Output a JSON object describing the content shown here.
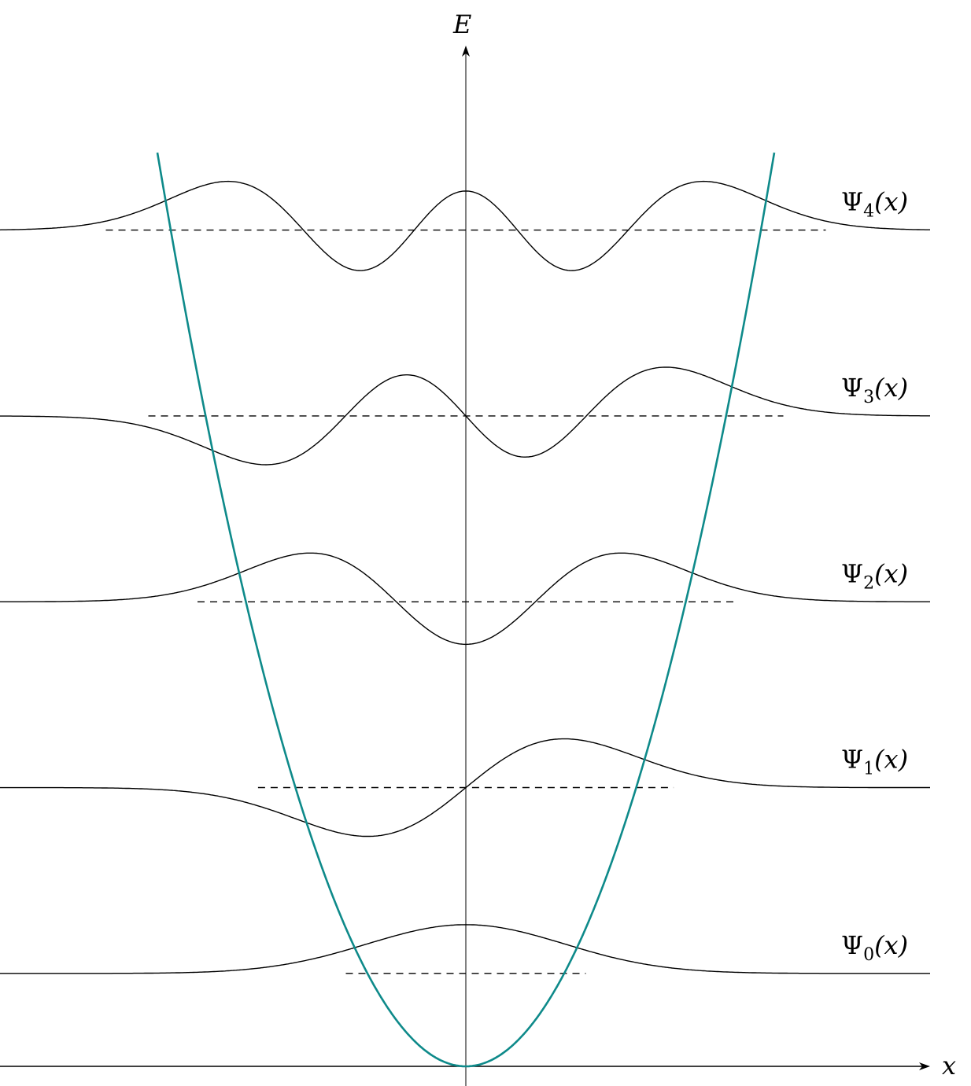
{
  "axes": {
    "x_label": "x",
    "y_label": "E"
  },
  "potential": {
    "type": "harmonic",
    "color": "#0e8a8a"
  },
  "states": [
    {
      "n": 0,
      "symbol": "Ψ",
      "sub": "0",
      "args": "(x)"
    },
    {
      "n": 1,
      "symbol": "Ψ",
      "sub": "1",
      "args": "(x)"
    },
    {
      "n": 2,
      "symbol": "Ψ",
      "sub": "2",
      "args": "(x)"
    },
    {
      "n": 3,
      "symbol": "Ψ",
      "sub": "3",
      "args": "(x)"
    },
    {
      "n": 4,
      "symbol": "Ψ",
      "sub": "4",
      "args": "(x)"
    }
  ],
  "chart_data": {
    "type": "line",
    "title": "",
    "xlabel": "x",
    "ylabel": "E",
    "energy_levels": [
      0.5,
      1.5,
      2.5,
      3.5,
      4.5
    ],
    "series": [
      {
        "name": "Ψ0(x)",
        "level": 0.5
      },
      {
        "name": "Ψ1(x)",
        "level": 1.5
      },
      {
        "name": "Ψ2(x)",
        "level": 2.5
      },
      {
        "name": "Ψ3(x)",
        "level": 3.5
      },
      {
        "name": "Ψ4(x)",
        "level": 4.5
      }
    ]
  }
}
